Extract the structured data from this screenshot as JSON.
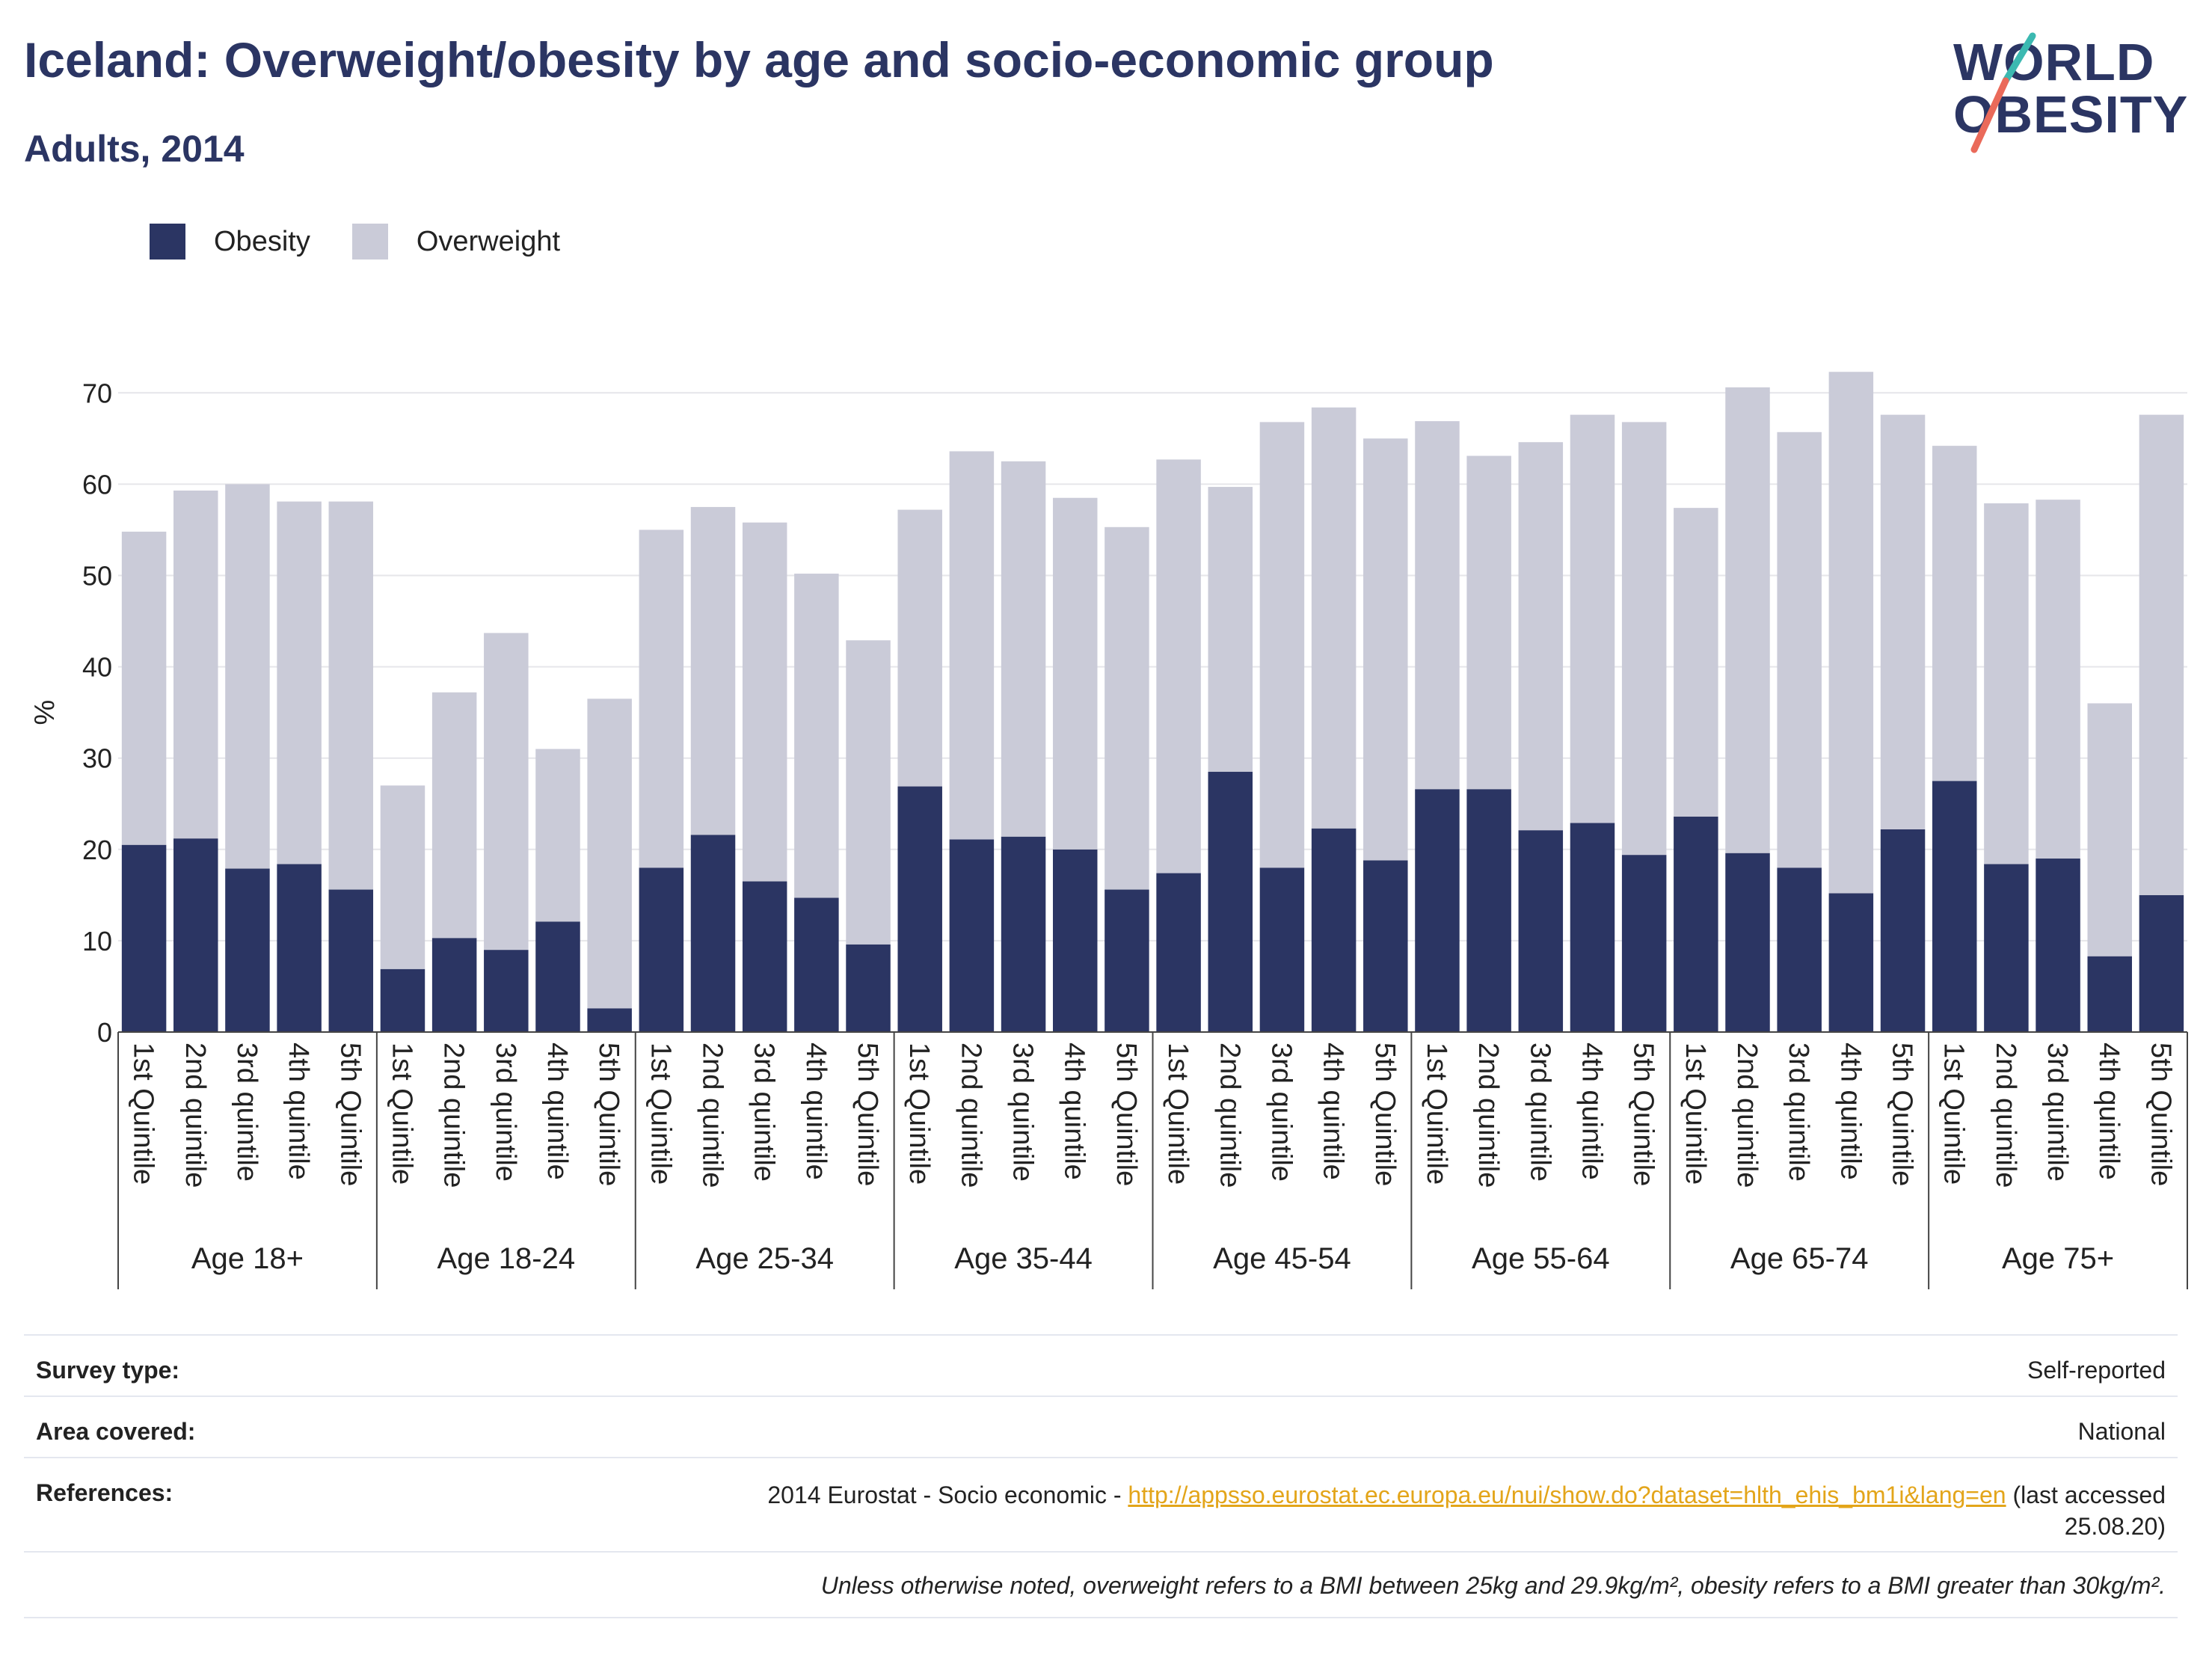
{
  "header": {
    "title": "Iceland: Overweight/obesity by age and socio-economic group",
    "subtitle": "Adults, 2014"
  },
  "logo": {
    "line1": "WORLD",
    "line2": "OBESITY"
  },
  "colors": {
    "obesity": "#2b3563",
    "overweight": "#cacbd8",
    "link": "#e3a51a",
    "logo_teal": "#3cb9b1",
    "logo_coral": "#ea6a5a"
  },
  "chart_data": {
    "type": "bar",
    "stacked": true,
    "ylabel": "%",
    "ylim": [
      0,
      75
    ],
    "yticks": [
      0,
      10,
      20,
      30,
      40,
      50,
      60,
      70
    ],
    "grid": true,
    "legend_placement": "top-left",
    "groups": [
      {
        "label": "Age 18+",
        "categories": [
          "1st Quintile",
          "2nd quintile",
          "3rd quintile",
          "4th quintile",
          "5th Quintile"
        ]
      },
      {
        "label": "Age 18-24",
        "categories": [
          "1st Quintile",
          "2nd quintile",
          "3rd quintile",
          "4th quintile",
          "5th Quintile"
        ]
      },
      {
        "label": "Age 25-34",
        "categories": [
          "1st Quintile",
          "2nd quintile",
          "3rd quintile",
          "4th quintile",
          "5th Quintile"
        ]
      },
      {
        "label": "Age 35-44",
        "categories": [
          "1st Quintile",
          "2nd quintile",
          "3rd quintile",
          "4th quintile",
          "5th Quintile"
        ]
      },
      {
        "label": "Age 45-54",
        "categories": [
          "1st Quintile",
          "2nd quintile",
          "3rd quintile",
          "4th quintile",
          "5th Quintile"
        ]
      },
      {
        "label": "Age 55-64",
        "categories": [
          "1st Quintile",
          "2nd quintile",
          "3rd quintile",
          "4th quintile",
          "5th Quintile"
        ]
      },
      {
        "label": "Age 65-74",
        "categories": [
          "1st Quintile",
          "2nd quintile",
          "3rd quintile",
          "4th quintile",
          "5th Quintile"
        ]
      },
      {
        "label": "Age 75+",
        "categories": [
          "1st Quintile",
          "2nd quintile",
          "3rd quintile",
          "4th quintile",
          "5th Quintile"
        ]
      }
    ],
    "series": [
      {
        "name": "Obesity",
        "values": [
          20.5,
          21.2,
          17.9,
          18.4,
          15.6,
          6.9,
          10.3,
          9.0,
          12.1,
          2.6,
          18.0,
          21.6,
          16.5,
          14.7,
          9.6,
          26.9,
          21.1,
          21.4,
          20.0,
          15.6,
          17.4,
          28.5,
          18.0,
          22.3,
          18.8,
          26.6,
          26.6,
          22.1,
          22.9,
          19.4,
          23.6,
          19.6,
          18.0,
          15.2,
          22.2,
          27.5,
          18.4,
          19.0,
          8.3,
          15.0
        ]
      },
      {
        "name": "Overweight",
        "values": [
          34.3,
          38.1,
          42.1,
          39.7,
          42.5,
          20.1,
          26.9,
          34.7,
          18.9,
          33.9,
          37.0,
          35.9,
          39.3,
          35.5,
          33.3,
          30.3,
          42.5,
          41.1,
          38.5,
          39.7,
          45.3,
          31.2,
          48.8,
          46.1,
          46.2,
          40.3,
          36.5,
          42.5,
          44.7,
          47.4,
          33.8,
          51.0,
          47.7,
          57.1,
          45.4,
          36.7,
          39.5,
          39.3,
          27.7,
          52.6
        ]
      }
    ]
  },
  "info": {
    "survey_type_label": "Survey type:",
    "survey_type_value": "Self-reported",
    "area_label": "Area covered:",
    "area_value": "National",
    "references_label": "References:",
    "references_prefix": "2014 Eurostat - Socio economic - ",
    "references_link": "http://appsso.eurostat.ec.europa.eu/nui/show.do?dataset=hlth_ehis_bm1i&lang=en",
    "references_suffix_1": " (last accessed",
    "references_suffix_2": "25.08.20)",
    "footnote": "Unless otherwise noted, overweight refers to a BMI between 25kg and 29.9kg/m², obesity refers to a BMI greater than 30kg/m²."
  }
}
